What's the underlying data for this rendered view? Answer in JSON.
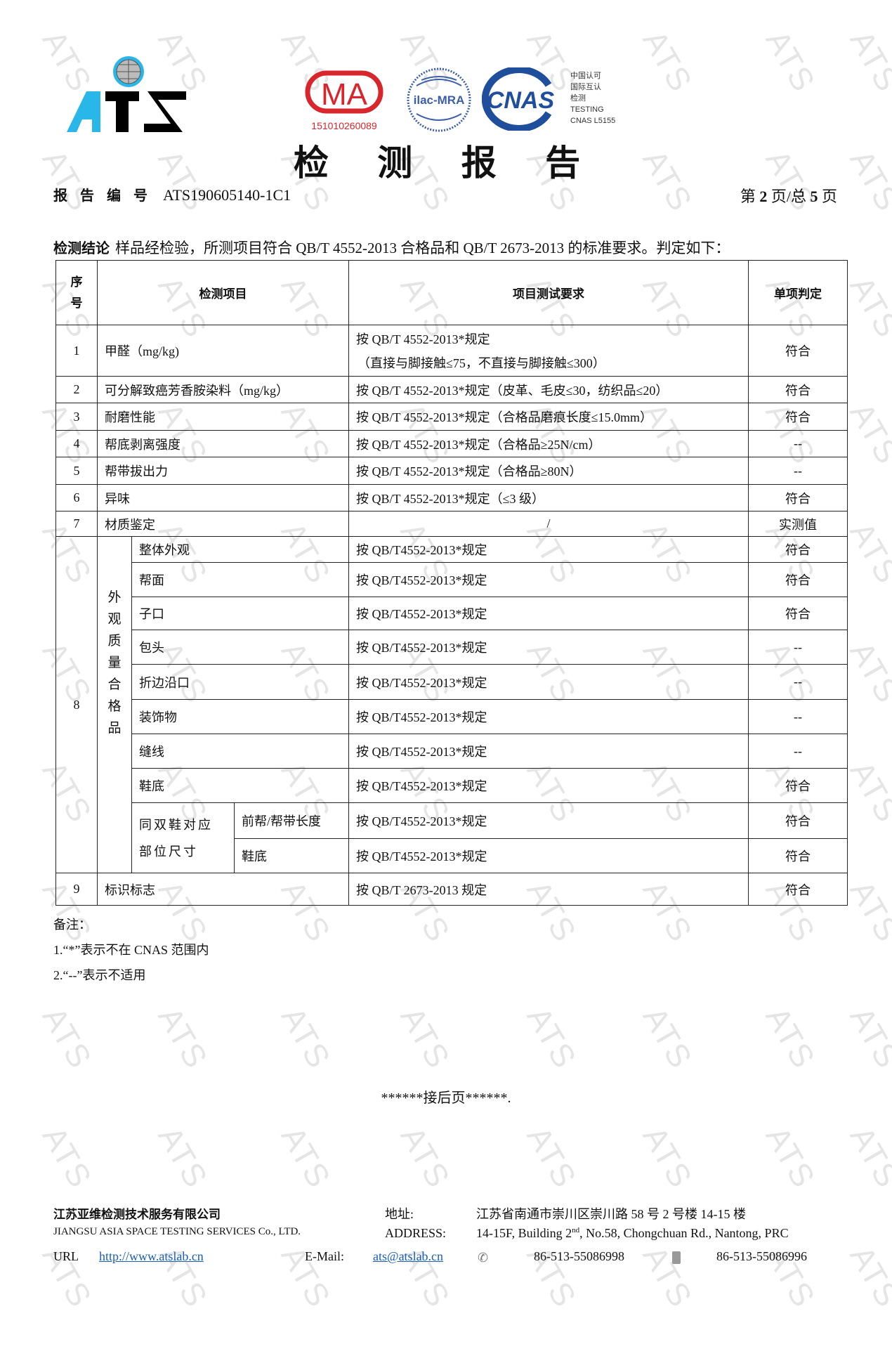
{
  "watermark": "ATS",
  "logos": {
    "ats": "ATS",
    "cma": "MA",
    "cma_number": "151010260089",
    "ilac": "ilac-MRA",
    "cnas": "CNAS",
    "cnas_text": "中国认可\n国际互认\n检测\nTESTING\nCNAS L5155"
  },
  "title": "检 测 报 告",
  "report_no_label": "报告编号",
  "report_no": "ATS190605140-1C1",
  "page_info": {
    "prefix": "第 ",
    "current": "2",
    "middle": " 页/总 ",
    "total": "5",
    "suffix": " 页"
  },
  "conclusion_label": "检测结论",
  "conclusion_text": "样品经检验，所测项目符合 QB/T 4552-2013 合格品和 QB/T 2673-2013 的标准要求。判定如下：",
  "table": {
    "headers": {
      "no": "序号",
      "item": "检测项目",
      "req": "项目测试要求",
      "result": "单项判定"
    },
    "rows": [
      {
        "no": "1",
        "item": "甲醛（mg/kg)",
        "req": "按 QB/T 4552-2013*规定",
        "req2": "（直接与脚接触≤75，不直接与脚接触≤300）",
        "result": "符合"
      },
      {
        "no": "2",
        "item": "可分解致癌芳香胺染料（mg/kg）",
        "req": "按 QB/T 4552-2013*规定（皮革、毛皮≤30，纺织品≤20）",
        "result": "符合"
      },
      {
        "no": "3",
        "item": "耐磨性能",
        "req": "按  QB/T 4552-2013*规定（合格品磨痕长度≤15.0mm）",
        "result": "符合"
      },
      {
        "no": "4",
        "item": "帮底剥离强度",
        "req": "按  QB/T 4552-2013*规定（合格品≥25N/cm）",
        "result": "--"
      },
      {
        "no": "5",
        "item": "帮带拔出力",
        "req": "按  QB/T 4552-2013*规定（合格品≥80N）",
        "result": "--"
      },
      {
        "no": "6",
        "item": "异味",
        "req": "按  QB/T 4552-2013*规定（≤3 级）",
        "result": "符合"
      },
      {
        "no": "7",
        "item": "材质鉴定",
        "req": "/",
        "result": "实测值"
      }
    ],
    "group8": {
      "no": "8",
      "group_label": "外观质量合格品",
      "rows": [
        {
          "item": "整体外观",
          "req": "按  QB/T4552-2013*规定",
          "result": "符合"
        },
        {
          "item": "帮面",
          "req": "按  QB/T4552-2013*规定",
          "result": "符合"
        },
        {
          "item": "子口",
          "req": "按  QB/T4552-2013*规定",
          "result": "符合"
        },
        {
          "item": "包头",
          "req": "按  QB/T4552-2013*规定",
          "result": "--"
        },
        {
          "item": "折边沿口",
          "req": "按  QB/T4552-2013*规定",
          "result": "--"
        },
        {
          "item": "装饰物",
          "req": "按  QB/T4552-2013*规定",
          "result": "--"
        },
        {
          "item": "缝线",
          "req": "按  QB/T4552-2013*规定",
          "result": "--"
        },
        {
          "item": "鞋底",
          "req": "按  QB/T4552-2013*规定",
          "result": "符合"
        }
      ],
      "size_label": "同双鞋对应部位尺寸",
      "size_rows": [
        {
          "item": "前帮/帮带长度",
          "req": "按  QB/T4552-2013*规定",
          "result": "符合"
        },
        {
          "item": "鞋底",
          "req": "按  QB/T4552-2013*规定",
          "result": "符合"
        }
      ]
    },
    "row9": {
      "no": "9",
      "item": "标识标志",
      "req": "按  QB/T 2673-2013 规定",
      "result": "符合"
    }
  },
  "notes": {
    "label": "备注：",
    "items": [
      "1.“*”表示不在 CNAS 范围内",
      "2.“--”表示不适用"
    ]
  },
  "continued": "******接后页******.",
  "footer": {
    "company_cn": "江苏亚维检测技术服务有限公司",
    "company_en": "JIANGSU ASIA SPACE TESTING SERVICES Co., LTD.",
    "address_label_cn": "地址:",
    "address_cn": "江苏省南通市崇川区崇川路 58 号 2 号楼 14-15 楼",
    "address_label_en": "ADDRESS:",
    "address_en_a": "14-15F, Building 2",
    "address_en_sup": "nd",
    "address_en_b": ", No.58, Chongchuan Rd., Nantong, PRC",
    "url_label": "URL",
    "url": "http://www.atslab.cn",
    "email_label": "E-Mail:",
    "email": "ats@atslab.cn",
    "phone": "86-513-55086998",
    "fax": "86-513-55086996"
  }
}
